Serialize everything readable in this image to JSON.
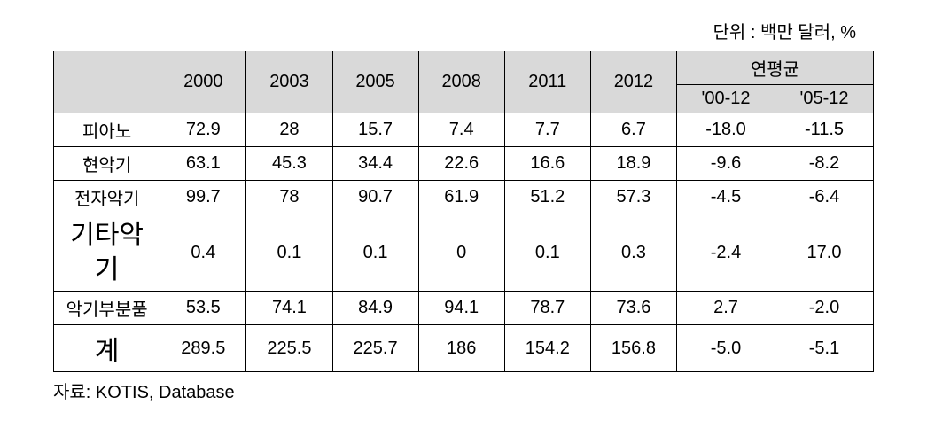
{
  "unit_label": "단위 : 백만 달러, %",
  "header": {
    "years": [
      "2000",
      "2003",
      "2005",
      "2008",
      "2011",
      "2012"
    ],
    "avg_label": "연평균",
    "avg_sub": [
      "'00-12",
      "'05-12"
    ]
  },
  "rows": [
    {
      "label": "피아노",
      "label_class": "row-label",
      "cells": [
        "72.9",
        "28",
        "15.7",
        "7.4",
        "7.7",
        "6.7",
        "-18.0",
        "-11.5"
      ]
    },
    {
      "label": "현악기",
      "label_class": "row-label",
      "cells": [
        "63.1",
        "45.3",
        "34.4",
        "22.6",
        "16.6",
        "18.9",
        "-9.6",
        "-8.2"
      ]
    },
    {
      "label": "전자악기",
      "label_class": "row-label",
      "cells": [
        "99.7",
        "78",
        "90.7",
        "61.9",
        "51.2",
        "57.3",
        "-4.5",
        "-6.4"
      ]
    },
    {
      "label": "기타악기",
      "label_class": "row-label-big",
      "cells": [
        "0.4",
        "0.1",
        "0.1",
        "0",
        "0.1",
        "0.3",
        "-2.4",
        "17.0"
      ]
    },
    {
      "label": "악기부분품",
      "label_class": "row-label",
      "cells": [
        "53.5",
        "74.1",
        "84.9",
        "94.1",
        "78.7",
        "73.6",
        "2.7",
        "-2.0"
      ]
    },
    {
      "label": "계",
      "label_class": "row-label-total",
      "cells": [
        "289.5",
        "225.5",
        "225.7",
        "186",
        "154.2",
        "156.8",
        "-5.0",
        "-5.1"
      ]
    }
  ],
  "source": "자료: KOTIS, Database",
  "styling": {
    "header_bg": "#d9d9d9",
    "border_color": "#000000",
    "text_color": "#000000",
    "font_family": "Malgun Gothic",
    "base_font_size": 20,
    "big_font_size": 30
  }
}
